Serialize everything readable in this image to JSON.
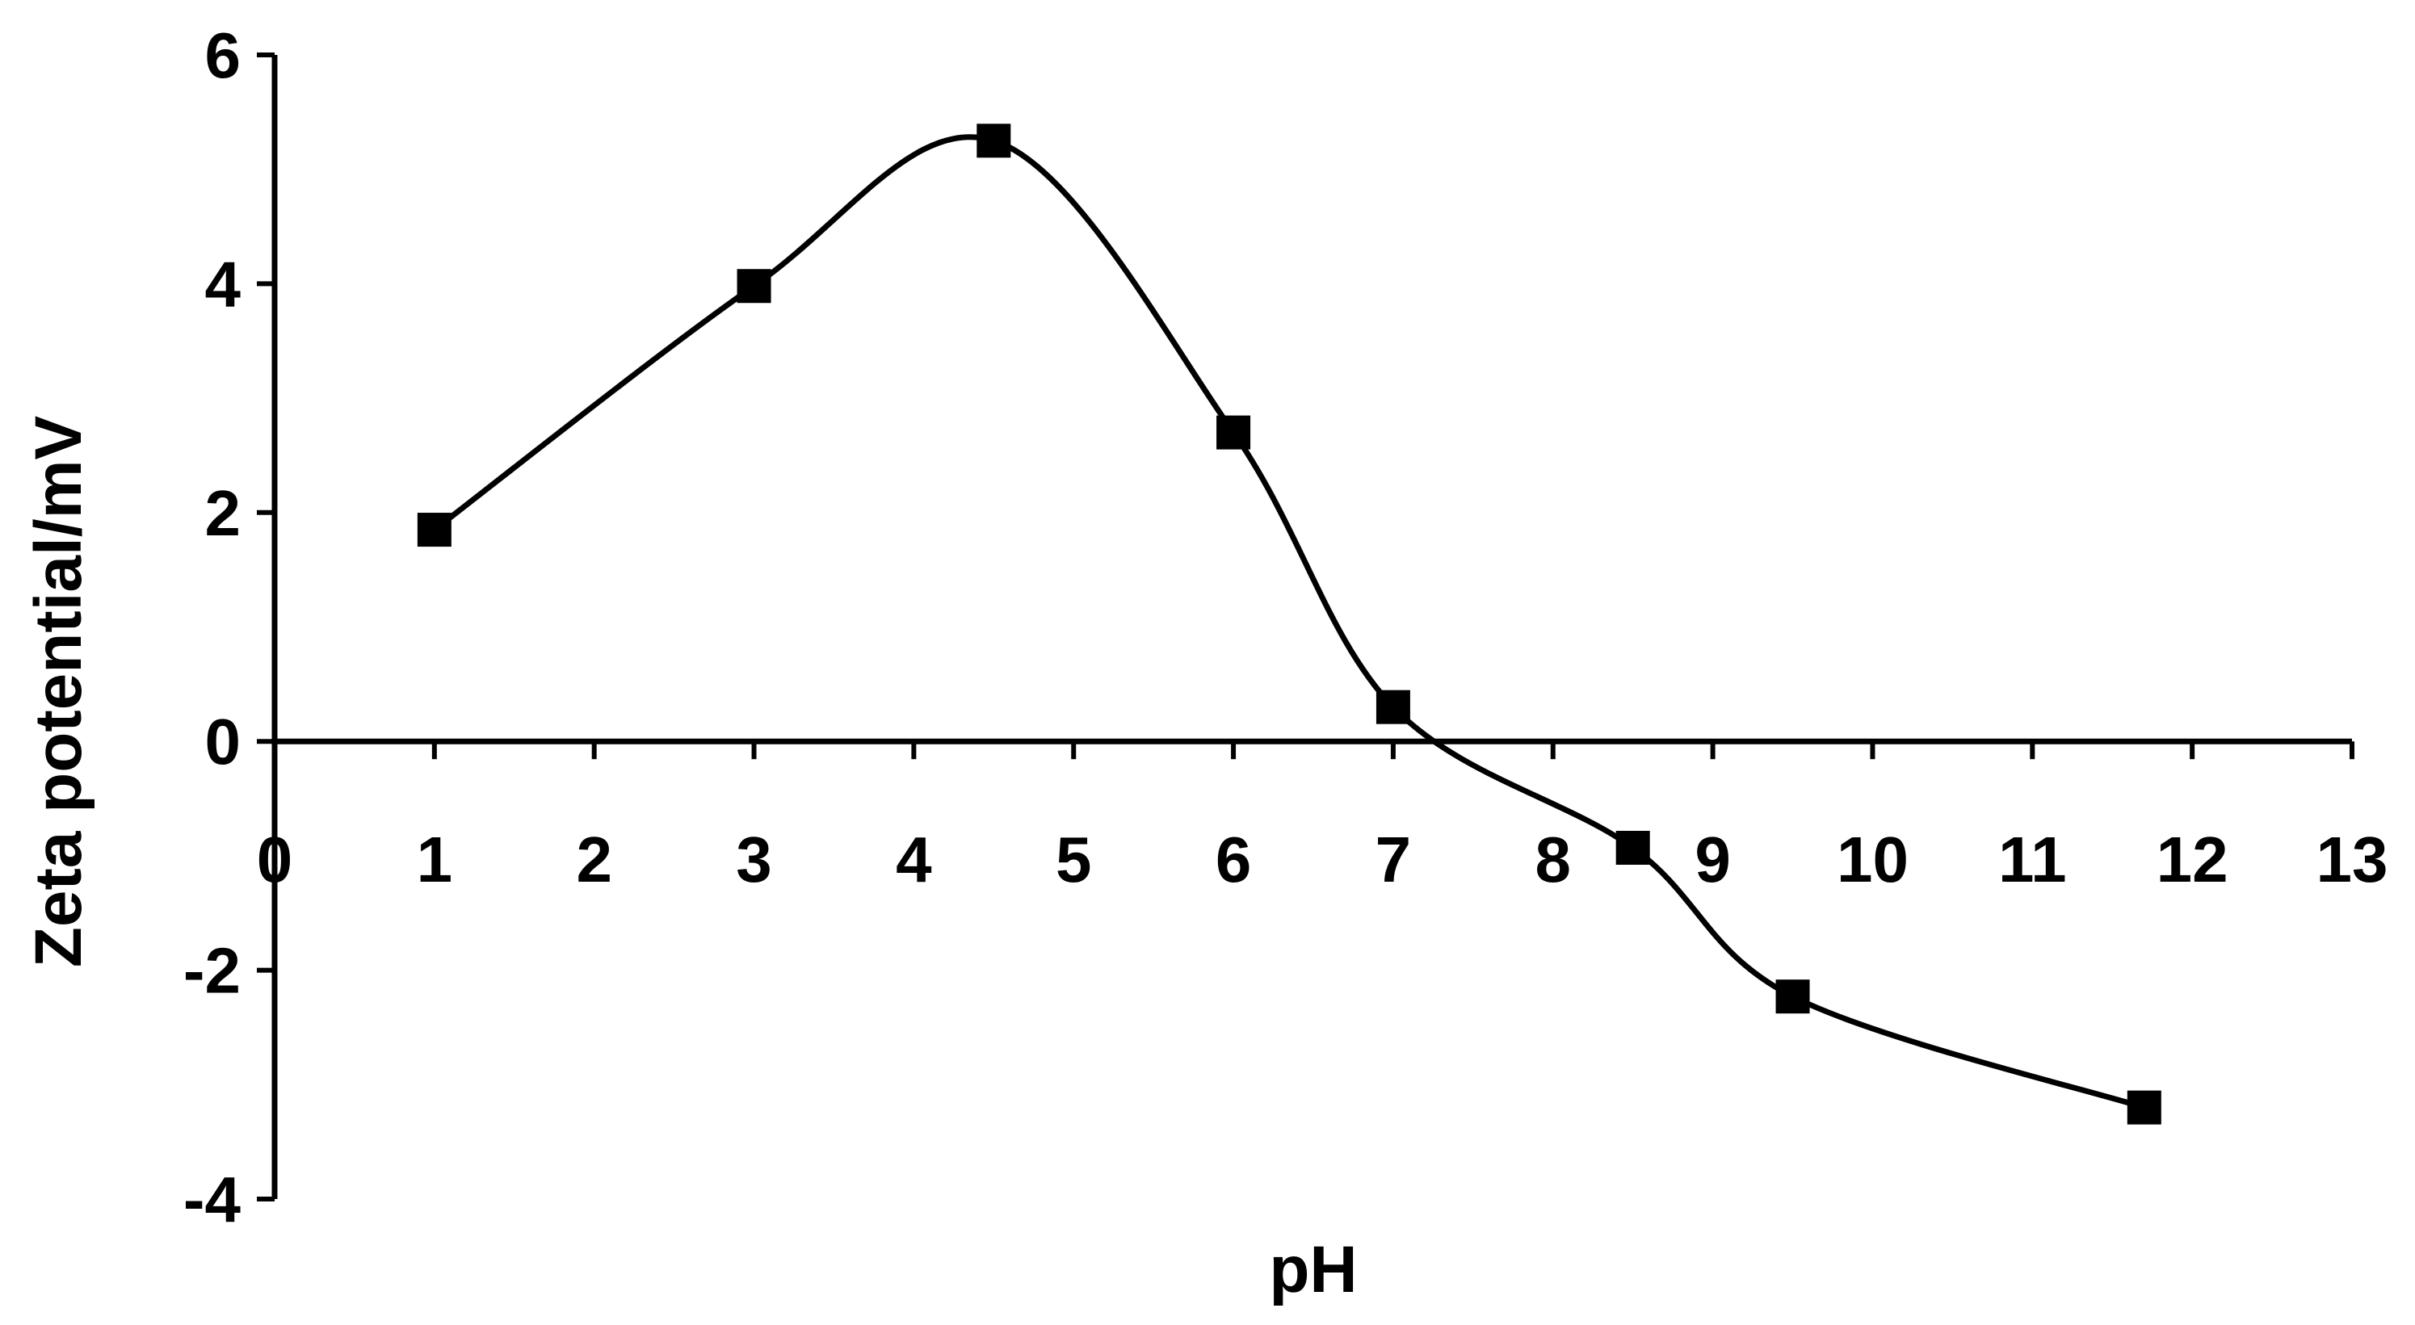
{
  "chart_data": {
    "type": "line",
    "title": "",
    "xlabel": "pH",
    "ylabel": "Zeta potential/mV",
    "xlim": [
      0,
      13
    ],
    "ylim": [
      -4,
      6
    ],
    "x_ticks": [
      0,
      1,
      2,
      3,
      4,
      5,
      6,
      7,
      8,
      9,
      10,
      11,
      12,
      13
    ],
    "y_ticks": [
      -4,
      -2,
      0,
      2,
      4,
      6
    ],
    "grid": false,
    "legend": "none",
    "line_color": "#000000",
    "marker": "square",
    "series": [
      {
        "x": [
          1,
          3,
          4.5,
          6,
          7,
          8.5,
          9.5,
          11.7
        ],
        "y": [
          1.85,
          3.98,
          5.25,
          2.7,
          0.3,
          -0.93,
          -2.23,
          -3.2
        ]
      }
    ]
  }
}
